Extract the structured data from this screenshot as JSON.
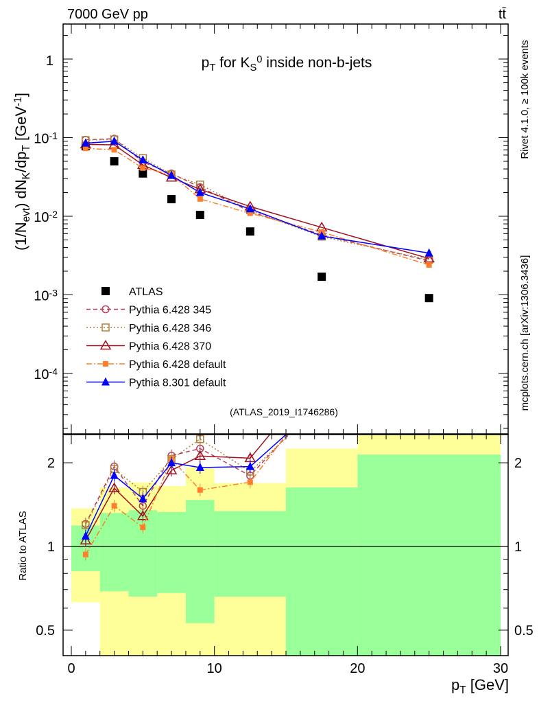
{
  "header": {
    "left": "7000 GeV pp",
    "right": "tt̄"
  },
  "side_labels": {
    "rivet": "Rivet 4.1.0, ≥ 100k events",
    "mcplots": "mcplots.cern.ch [arXiv:1306.3436]"
  },
  "analysis_id": "(ATLAS_2019_I1746286)",
  "chart_data": [
    {
      "type": "scatter",
      "title": "p_T for K_S^0 inside non-b-jets",
      "ylabel": "(1/N_evt) dN_K/dp_T [GeV^-1]",
      "xlabel": "p_T [GeV]",
      "xlim": [
        0,
        30
      ],
      "ylim": [
        1.7e-05,
        2.8
      ],
      "yscale": "log",
      "ytick_labels": [
        "1",
        "10^-1",
        "10^-2",
        "10^-3",
        "10^-4"
      ],
      "xtick_labels": [
        "0",
        "10",
        "20",
        "30"
      ],
      "legend_position": "bottom-left",
      "x": [
        1,
        3,
        5,
        7,
        9,
        12.5,
        17.5,
        25
      ],
      "bins": [
        [
          0,
          2
        ],
        [
          2,
          4
        ],
        [
          4,
          6
        ],
        [
          6,
          8
        ],
        [
          8,
          10
        ],
        [
          10,
          15
        ],
        [
          15,
          20
        ],
        [
          20,
          30
        ]
      ],
      "series": [
        {
          "name": "ATLAS",
          "color": "#000000",
          "marker": "square",
          "line": "none",
          "values": [
            0.078,
            0.05,
            0.035,
            0.0165,
            0.0104,
            0.0064,
            0.0017,
            0.00091
          ]
        },
        {
          "name": "Pythia 6.428 345",
          "color": "#b5405a",
          "marker": "open-circle",
          "line": "dashed",
          "values": [
            0.094,
            0.097,
            0.049,
            0.035,
            0.0234,
            0.0115,
            0.0058,
            0.0027
          ]
        },
        {
          "name": "Pythia 6.428 346",
          "color": "#b0803a",
          "marker": "open-square",
          "line": "dotted",
          "values": [
            0.093,
            0.095,
            0.055,
            0.034,
            0.0253,
            0.0119,
            0.0055,
            0.0028
          ]
        },
        {
          "name": "Pythia 6.428 370",
          "color": "#a0101e",
          "marker": "open-triangle",
          "line": "solid",
          "values": [
            0.082,
            0.081,
            0.045,
            0.031,
            0.022,
            0.0133,
            0.0072,
            0.0029
          ]
        },
        {
          "name": "Pythia 6.428 default",
          "color": "#ff7f2a",
          "marker": "square-small",
          "line": "dashdot",
          "values": [
            0.073,
            0.07,
            0.041,
            0.034,
            0.0166,
            0.0109,
            0.0063,
            0.0024
          ]
        },
        {
          "name": "Pythia 8.301 default",
          "color": "#0000ff",
          "marker": "triangle",
          "line": "solid",
          "values": [
            0.085,
            0.09,
            0.052,
            0.033,
            0.02,
            0.0124,
            0.0056,
            0.0034
          ]
        }
      ]
    },
    {
      "type": "line",
      "ylabel": "Ratio to ATLAS",
      "yscale": "log",
      "ylim": [
        0.405,
        2.53
      ],
      "ytick_labels": [
        "0.5",
        "1",
        "2"
      ],
      "ytick_values": [
        0.5,
        1,
        2
      ],
      "band_colors": {
        "stat": "#99ff99",
        "total": "#ffff99"
      },
      "stat_band": [
        [
          0.815,
          1.19
        ],
        [
          0.69,
          1.32
        ],
        [
          0.66,
          1.35
        ],
        [
          0.68,
          1.33
        ],
        [
          0.53,
          1.47
        ],
        [
          0.66,
          1.34
        ],
        [
          0.3,
          1.63
        ],
        [
          0.3,
          2.14
        ]
      ],
      "total_band": [
        [
          0.63,
          1.37
        ],
        [
          0.3,
          1.63
        ],
        [
          0.3,
          1.7
        ],
        [
          0.3,
          1.65
        ],
        [
          0.3,
          1.93
        ],
        [
          0.3,
          1.69
        ],
        [
          0.3,
          2.25
        ],
        [
          0.3,
          2.6
        ]
      ]
    }
  ]
}
